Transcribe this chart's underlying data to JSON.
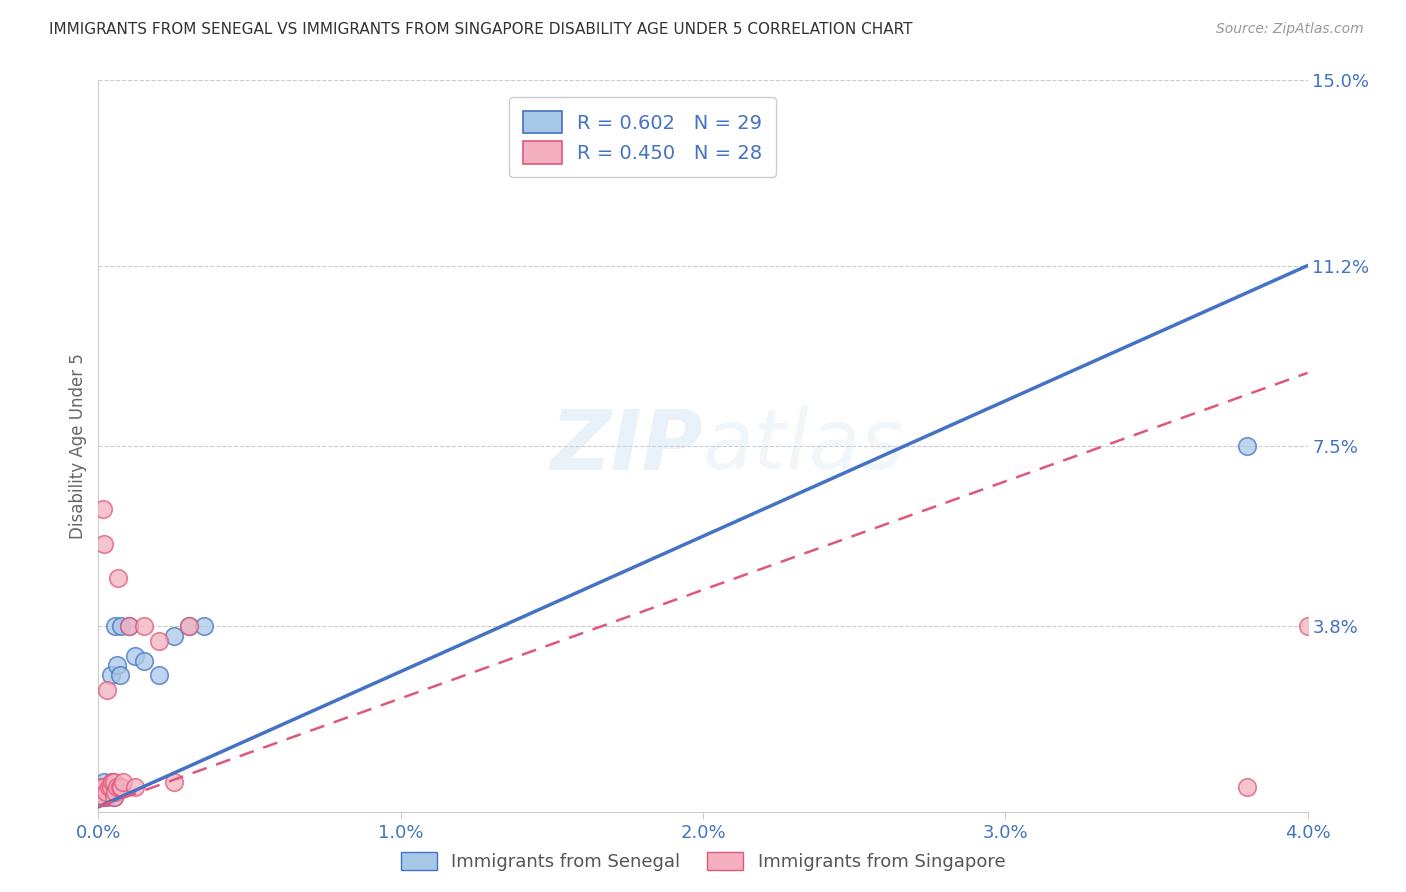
{
  "title": "IMMIGRANTS FROM SENEGAL VS IMMIGRANTS FROM SINGAPORE DISABILITY AGE UNDER 5 CORRELATION CHART",
  "source": "Source: ZipAtlas.com",
  "ylabel": "Disability Age Under 5",
  "xlim": [
    0.0,
    0.04
  ],
  "ylim": [
    0.0,
    0.15
  ],
  "xticks": [
    0.0,
    0.01,
    0.02,
    0.03,
    0.04
  ],
  "xtick_labels": [
    "0.0%",
    "1.0%",
    "2.0%",
    "3.0%",
    "4.0%"
  ],
  "ytick_labels_right": [
    "15.0%",
    "11.2%",
    "7.5%",
    "3.8%"
  ],
  "ytick_vals_right": [
    0.15,
    0.112,
    0.075,
    0.038
  ],
  "R_senegal": 0.602,
  "N_senegal": 29,
  "R_singapore": 0.45,
  "N_singapore": 28,
  "color_senegal": "#a8c8e8",
  "color_singapore": "#f4b0c0",
  "line_color_senegal": "#4472c4",
  "line_color_singapore": "#e05878",
  "background_color": "#ffffff",
  "watermark": "ZIPatlas",
  "senegal_x": [
    5e-05,
    0.0001,
    0.0001,
    0.00015,
    0.00015,
    0.0002,
    0.0002,
    0.00025,
    0.0003,
    0.0003,
    0.00035,
    0.0004,
    0.0004,
    0.00045,
    0.0005,
    0.0005,
    0.00055,
    0.0006,
    0.00065,
    0.0007,
    0.00075,
    0.001,
    0.0012,
    0.0015,
    0.002,
    0.0025,
    0.003,
    0.0035,
    0.038
  ],
  "senegal_y": [
    0.005,
    0.003,
    0.005,
    0.004,
    0.003,
    0.006,
    0.004,
    0.005,
    0.004,
    0.003,
    0.004,
    0.028,
    0.005,
    0.006,
    0.003,
    0.005,
    0.038,
    0.03,
    0.005,
    0.028,
    0.038,
    0.038,
    0.032,
    0.031,
    0.028,
    0.036,
    0.038,
    0.038,
    0.075
  ],
  "singapore_x": [
    5e-05,
    0.0001,
    0.0001,
    0.00015,
    0.00015,
    0.0002,
    0.0002,
    0.00025,
    0.0003,
    0.00035,
    0.0004,
    0.00045,
    0.0005,
    0.0005,
    0.00055,
    0.0006,
    0.00065,
    0.0007,
    0.00075,
    0.0008,
    0.001,
    0.0012,
    0.0015,
    0.002,
    0.0025,
    0.003,
    0.038,
    0.04
  ],
  "singapore_y": [
    0.003,
    0.005,
    0.003,
    0.005,
    0.062,
    0.003,
    0.055,
    0.004,
    0.025,
    0.005,
    0.005,
    0.006,
    0.006,
    0.003,
    0.004,
    0.005,
    0.048,
    0.005,
    0.005,
    0.006,
    0.038,
    0.005,
    0.038,
    0.035,
    0.006,
    0.038,
    0.005,
    0.038
  ],
  "senegal_trend_x": [
    0.0,
    0.04
  ],
  "senegal_trend_y": [
    0.001,
    0.112
  ],
  "singapore_trend_x": [
    0.0,
    0.04
  ],
  "singapore_trend_y": [
    0.001,
    0.09
  ]
}
